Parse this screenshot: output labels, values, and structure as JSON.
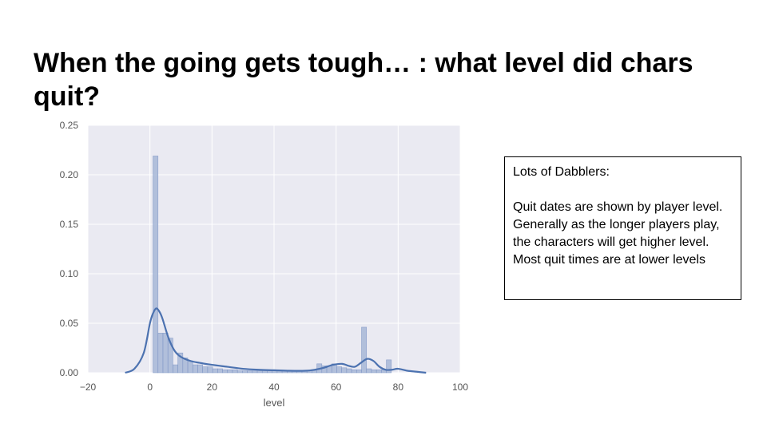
{
  "slide": {
    "title": "When the going gets tough… : what level did chars quit?"
  },
  "note": {
    "heading": "Lots of Dabblers:",
    "body": "Quit dates are shown by player level. Generally as the longer players play, the characters will get higher level. Most quit times are at lower levels"
  },
  "colors": {
    "plot_bg": "#eaeaf2",
    "grid": "#ffffff",
    "bar_fill": "#a8b8d8",
    "bar_stroke": "#7b93c4",
    "kde": "#4c72b0",
    "tick_text": "#555555"
  },
  "chart_data": {
    "type": "histogram",
    "title": "",
    "xlabel": "level",
    "ylabel": "",
    "xlim": [
      -20,
      100
    ],
    "ylim": [
      0,
      0.25
    ],
    "xticks": [
      -20,
      0,
      20,
      40,
      60,
      80,
      100
    ],
    "xtick_labels": [
      "−20",
      "0",
      "20",
      "40",
      "60",
      "80",
      "100"
    ],
    "yticks": [
      0.0,
      0.05,
      0.1,
      0.15,
      0.2,
      0.25
    ],
    "ytick_labels": [
      "0.00",
      "0.05",
      "0.10",
      "0.15",
      "0.20",
      "0.25"
    ],
    "bin_width": 1.6,
    "bins_start": 1,
    "bin_heights": [
      0.219,
      0.04,
      0.04,
      0.035,
      0.008,
      0.02,
      0.015,
      0.012,
      0.008,
      0.008,
      0.006,
      0.006,
      0.004,
      0.004,
      0.003,
      0.003,
      0.003,
      0.002,
      0.002,
      0.002,
      0.002,
      0.002,
      0.002,
      0.002,
      0.002,
      0.002,
      0.002,
      0.002,
      0.002,
      0.002,
      0.002,
      0.002,
      0.002,
      0.009,
      0.007,
      0.007,
      0.009,
      0.006,
      0.005,
      0.004,
      0.003,
      0.003,
      0.046,
      0.004,
      0.003,
      0.003,
      0.003,
      0.013
    ],
    "kde": {
      "x": [
        -8,
        -5,
        -2,
        0,
        1,
        2,
        3,
        4,
        6,
        8,
        10,
        13,
        16,
        20,
        25,
        30,
        35,
        40,
        45,
        50,
        53,
        56,
        59,
        62,
        64,
        66,
        68,
        70,
        72,
        74,
        76,
        78,
        80,
        83,
        86,
        89
      ],
      "y": [
        0.0,
        0.004,
        0.02,
        0.05,
        0.06,
        0.065,
        0.062,
        0.055,
        0.035,
        0.022,
        0.016,
        0.012,
        0.01,
        0.008,
        0.006,
        0.004,
        0.003,
        0.0025,
        0.002,
        0.002,
        0.003,
        0.005,
        0.008,
        0.009,
        0.007,
        0.006,
        0.01,
        0.014,
        0.012,
        0.006,
        0.003,
        0.003,
        0.004,
        0.002,
        0.001,
        0.0
      ]
    }
  }
}
